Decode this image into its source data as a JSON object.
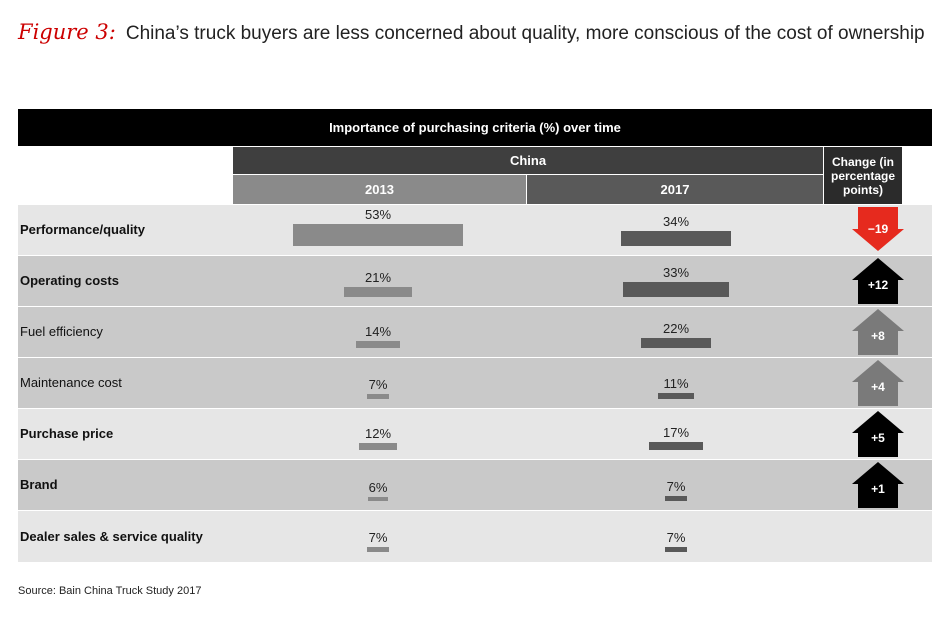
{
  "figure": {
    "label": "Figure 3:",
    "title": "China’s truck buyers are less concerned about quality, more conscious of the cost of ownership"
  },
  "chart_data": {
    "type": "bar",
    "title": "Importance of purchasing criteria (%) over time",
    "group_label": "China",
    "change_header": "Change (in percentage points)",
    "categories": [
      "Performance/quality",
      "Operating costs",
      "Fuel efficiency",
      "Maintenance cost",
      "Purchase price",
      "Brand",
      "Dealer sales & service quality"
    ],
    "bold": [
      true,
      true,
      false,
      false,
      true,
      true,
      true
    ],
    "series": [
      {
        "name": "2013",
        "values": [
          53,
          21,
          14,
          7,
          12,
          6,
          7
        ],
        "labels": [
          "53%",
          "21%",
          "14%",
          "7%",
          "12%",
          "6%",
          "7%"
        ],
        "color": "#8a8a8a"
      },
      {
        "name": "2017",
        "values": [
          34,
          33,
          22,
          11,
          17,
          7,
          7
        ],
        "labels": [
          "34%",
          "33%",
          "22%",
          "11%",
          "17%",
          "7%",
          "7%"
        ],
        "color": "#595959"
      }
    ],
    "change": [
      {
        "label": "−19",
        "direction": "down",
        "color": "#e62a1e"
      },
      {
        "label": "+12",
        "direction": "up",
        "color": "#000000"
      },
      {
        "label": "+8",
        "direction": "up",
        "color": "#7a7a7a"
      },
      {
        "label": "+4",
        "direction": "up",
        "color": "#7a7a7a"
      },
      {
        "label": "+5",
        "direction": "up",
        "color": "#000000"
      },
      {
        "label": "+1",
        "direction": "up",
        "color": "#000000"
      },
      null
    ]
  },
  "source": "Source: Bain China Truck Study 2017"
}
